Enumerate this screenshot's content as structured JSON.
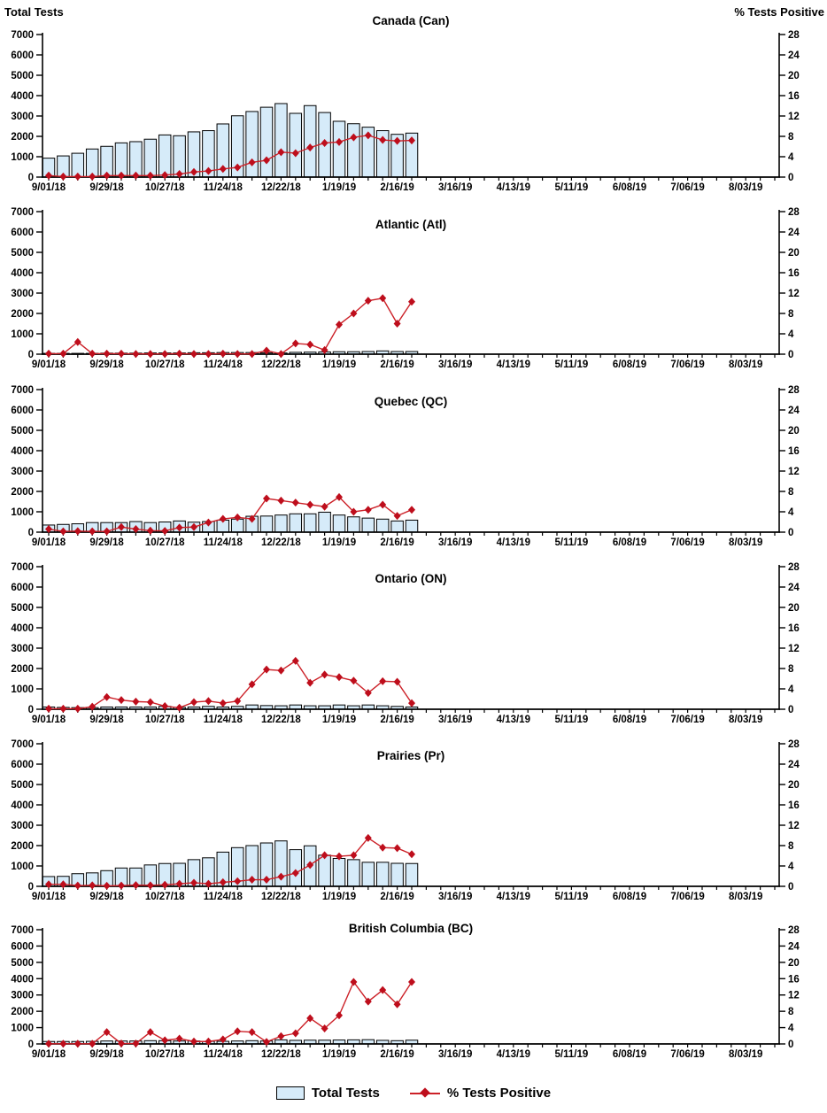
{
  "header": {
    "left_axis_title": "Total Tests",
    "right_axis_title": "% Tests Positive"
  },
  "legend": {
    "bars_label": "Total Tests",
    "line_label": "% Tests Positive"
  },
  "colors": {
    "bar_fill": "#D6EBF9",
    "bar_stroke": "#000000",
    "line": "#CC2128",
    "marker": "#BE0E1C",
    "axis": "#000000",
    "text": "#000000"
  },
  "chart_data": {
    "type": "combo-bar-line",
    "shared": {
      "left_axis": {
        "label": "Total Tests",
        "ylim": [
          0,
          7000
        ],
        "ticks": [
          0,
          1000,
          2000,
          3000,
          4000,
          5000,
          6000,
          7000
        ]
      },
      "right_axis": {
        "label": "% Tests Positive",
        "ylim": [
          0,
          28
        ],
        "ticks": [
          0,
          4,
          8,
          12,
          16,
          20,
          24,
          28
        ]
      },
      "x_axis": {
        "tick_labels": [
          "9/01/18",
          "9/29/18",
          "10/27/18",
          "11/24/18",
          "12/22/18",
          "1/19/19",
          "2/16/19",
          "3/16/19",
          "4/13/19",
          "5/11/19",
          "6/08/19",
          "7/06/19",
          "8/03/19"
        ],
        "weeks_total": 51,
        "label_every_n_weeks": 4,
        "grid": false,
        "legend_position": "bottom-center"
      },
      "categories": [
        "9/01/18",
        "9/08/18",
        "9/15/18",
        "9/22/18",
        "9/29/18",
        "10/06/18",
        "10/13/18",
        "10/20/18",
        "10/27/18",
        "11/03/18",
        "11/10/18",
        "11/17/18",
        "11/24/18",
        "12/01/18",
        "12/08/18",
        "12/15/18",
        "12/22/18",
        "12/29/18",
        "1/05/19",
        "1/12/19",
        "1/19/19",
        "1/26/19",
        "2/02/19",
        "2/09/19",
        "2/16/19",
        "2/23/19"
      ]
    },
    "charts": [
      {
        "title": "Canada (Can)",
        "series": [
          {
            "name": "Total Tests",
            "axis": "left",
            "type": "bar",
            "values": [
              930,
              1040,
              1170,
              1380,
              1510,
              1680,
              1740,
              1860,
              2070,
              2030,
              2220,
              2280,
              2610,
              3010,
              3220,
              3430,
              3610,
              3130,
              3510,
              3170,
              2740,
              2620,
              2450,
              2280,
              2100,
              2160
            ]
          },
          {
            "name": "% Tests Positive",
            "axis": "right",
            "type": "line",
            "values": [
              0.3,
              0.1,
              0.1,
              0.1,
              0.3,
              0.3,
              0.3,
              0.3,
              0.4,
              0.6,
              1.0,
              1.2,
              1.6,
              1.9,
              2.9,
              3.3,
              4.9,
              4.7,
              5.8,
              6.7,
              6.9,
              7.8,
              8.2,
              7.3,
              7.1,
              7.2
            ]
          }
        ]
      },
      {
        "title": "Atlantic (Atl)",
        "series": [
          {
            "name": "Total Tests",
            "axis": "left",
            "type": "bar",
            "values": [
              40,
              40,
              40,
              40,
              50,
              50,
              50,
              60,
              60,
              60,
              70,
              70,
              80,
              80,
              80,
              70,
              60,
              90,
              100,
              110,
              120,
              120,
              130,
              160,
              130,
              130
            ]
          },
          {
            "name": "% Tests Positive",
            "axis": "right",
            "type": "line",
            "values": [
              0.1,
              0.1,
              2.4,
              0.1,
              0.1,
              0.1,
              0.05,
              0.05,
              0.05,
              0.1,
              0.05,
              0.05,
              0.1,
              0.05,
              0.05,
              0.7,
              0.05,
              2.1,
              1.9,
              0.8,
              5.8,
              8.0,
              10.5,
              11.0,
              6.0,
              10.3
            ]
          }
        ]
      },
      {
        "title": "Quebec (QC)",
        "series": [
          {
            "name": "Total Tests",
            "axis": "left",
            "type": "bar",
            "values": [
              350,
              380,
              410,
              470,
              470,
              470,
              520,
              470,
              500,
              550,
              490,
              520,
              590,
              640,
              780,
              790,
              840,
              900,
              900,
              980,
              840,
              750,
              690,
              640,
              550,
              590
            ]
          },
          {
            "name": "% Tests Positive",
            "axis": "right",
            "type": "line",
            "values": [
              0.6,
              0.15,
              0.2,
              0.15,
              0.15,
              1.0,
              0.6,
              0.3,
              0.25,
              0.9,
              1.0,
              1.9,
              2.6,
              2.9,
              2.6,
              6.6,
              6.2,
              5.8,
              5.4,
              5.0,
              6.9,
              4.0,
              4.4,
              5.4,
              3.2,
              4.4
            ]
          }
        ]
      },
      {
        "title": "Ontario (ON)",
        "series": [
          {
            "name": "Total Tests",
            "axis": "left",
            "type": "bar",
            "values": [
              110,
              90,
              80,
              80,
              110,
              110,
              110,
              110,
              140,
              90,
              110,
              140,
              110,
              140,
              210,
              180,
              170,
              210,
              170,
              170,
              210,
              170,
              210,
              170,
              140,
              110
            ]
          },
          {
            "name": "% Tests Positive",
            "axis": "right",
            "type": "line",
            "values": [
              0.1,
              0.1,
              0.1,
              0.5,
              2.4,
              1.8,
              1.5,
              1.4,
              0.6,
              0.3,
              1.4,
              1.6,
              1.2,
              1.6,
              4.9,
              7.8,
              7.6,
              9.5,
              5.2,
              6.8,
              6.3,
              5.6,
              3.2,
              5.5,
              5.4,
              1.2
            ]
          }
        ]
      },
      {
        "title": "Prairies (Pr)",
        "series": [
          {
            "name": "Total Tests",
            "axis": "left",
            "type": "bar",
            "values": [
              480,
              490,
              620,
              660,
              770,
              900,
              900,
              1050,
              1120,
              1130,
              1310,
              1400,
              1680,
              1900,
              2000,
              2130,
              2230,
              1800,
              1990,
              1530,
              1370,
              1310,
              1180,
              1180,
              1130,
              1120
            ]
          },
          {
            "name": "% Tests Positive",
            "axis": "right",
            "type": "line",
            "values": [
              0.4,
              0.4,
              0.15,
              0.2,
              0.1,
              0.15,
              0.25,
              0.2,
              0.3,
              0.5,
              0.7,
              0.5,
              0.8,
              1.0,
              1.3,
              1.3,
              1.9,
              2.6,
              4.2,
              6.1,
              5.9,
              6.1,
              9.5,
              7.6,
              7.5,
              6.3
            ]
          }
        ]
      },
      {
        "title": "British Columbia (BC)",
        "series": [
          {
            "name": "Total Tests",
            "axis": "left",
            "type": "bar",
            "values": [
              150,
              150,
              150,
              160,
              180,
              180,
              180,
              200,
              200,
              180,
              180,
              160,
              160,
              180,
              200,
              180,
              250,
              220,
              230,
              230,
              240,
              250,
              260,
              220,
              200,
              230
            ]
          },
          {
            "name": "% Tests Positive",
            "axis": "right",
            "type": "line",
            "values": [
              0.05,
              0.05,
              0.05,
              0.05,
              2.9,
              0.1,
              0.1,
              2.9,
              0.9,
              1.3,
              0.6,
              0.6,
              1.1,
              3.1,
              2.9,
              0.5,
              1.9,
              2.6,
              6.3,
              3.8,
              7.0,
              15.2,
              10.4,
              13.2,
              9.7,
              15.2
            ]
          }
        ]
      }
    ]
  }
}
